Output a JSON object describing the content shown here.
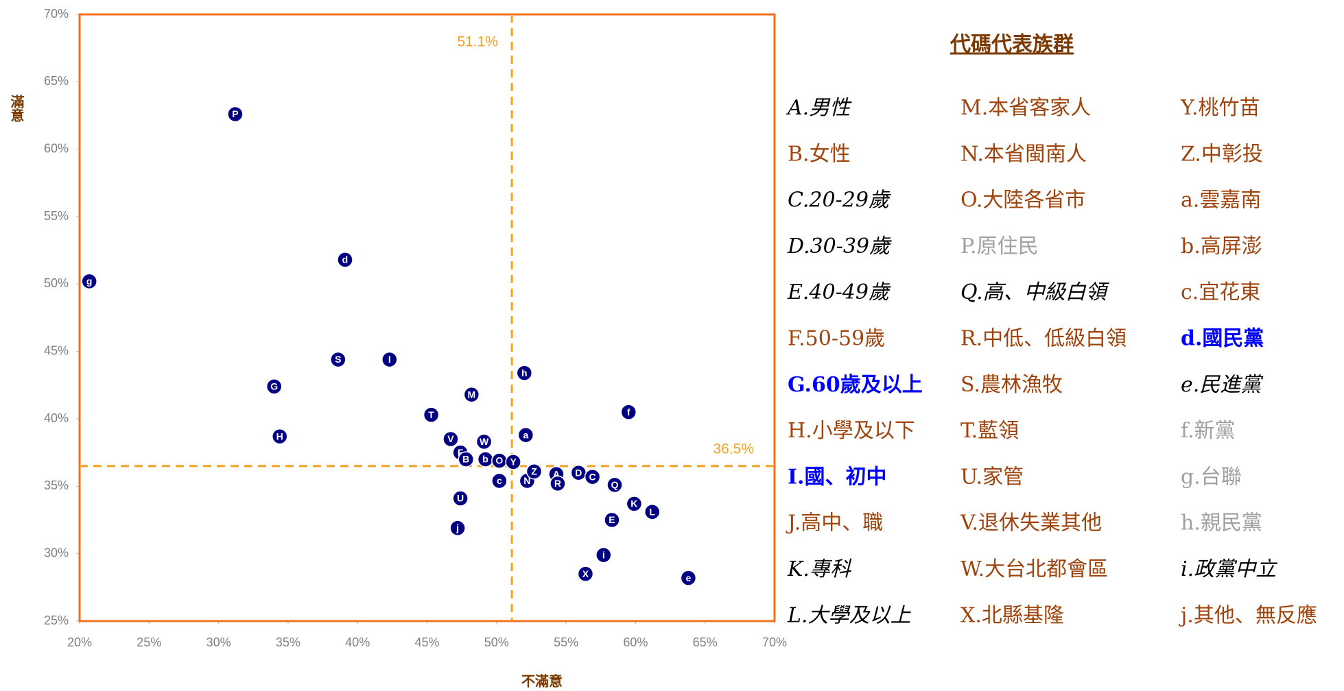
{
  "chart_data": {
    "type": "scatter",
    "x_label": "不滿意",
    "y_label": "滿意",
    "xlim": [
      20,
      70
    ],
    "ylim": [
      25,
      70
    ],
    "xticks": [
      {
        "value": 20,
        "label": "20%"
      },
      {
        "value": 25,
        "label": "25%"
      },
      {
        "value": 30,
        "label": "30%"
      },
      {
        "value": 35,
        "label": "35%"
      },
      {
        "value": 40,
        "label": "40%"
      },
      {
        "value": 45,
        "label": "45%"
      },
      {
        "value": 50,
        "label": "50%"
      },
      {
        "value": 55,
        "label": "55%"
      },
      {
        "value": 60,
        "label": "60%"
      },
      {
        "value": 65,
        "label": "65%"
      },
      {
        "value": 70,
        "label": "70%"
      }
    ],
    "yticks": [
      {
        "value": 25,
        "label": "25%"
      },
      {
        "value": 30,
        "label": "30%"
      },
      {
        "value": 35,
        "label": "35%"
      },
      {
        "value": 40,
        "label": "40%"
      },
      {
        "value": 45,
        "label": "45%"
      },
      {
        "value": 50,
        "label": "50%"
      },
      {
        "value": 55,
        "label": "55%"
      },
      {
        "value": 60,
        "label": "60%"
      },
      {
        "value": 65,
        "label": "65%"
      },
      {
        "value": 70,
        "label": "70%"
      }
    ],
    "color": "#000080",
    "ref_lines": [
      {
        "axis": "x",
        "value": 51.1,
        "label": "51.1%"
      },
      {
        "axis": "y",
        "value": 36.5,
        "label": "36.5%"
      }
    ],
    "points": [
      {
        "label": "P",
        "x": 31.2,
        "y": 62.6
      },
      {
        "label": "d",
        "x": 39.1,
        "y": 51.8
      },
      {
        "label": "g",
        "x": 20.7,
        "y": 50.2
      },
      {
        "label": "S",
        "x": 38.6,
        "y": 44.4
      },
      {
        "label": "I",
        "x": 42.3,
        "y": 44.4
      },
      {
        "label": "G",
        "x": 34.0,
        "y": 42.4
      },
      {
        "label": "H",
        "x": 34.4,
        "y": 38.7
      },
      {
        "label": "h",
        "x": 52.0,
        "y": 43.4
      },
      {
        "label": "M",
        "x": 48.2,
        "y": 41.8
      },
      {
        "label": "T",
        "x": 45.3,
        "y": 40.3
      },
      {
        "label": "f",
        "x": 59.5,
        "y": 40.5
      },
      {
        "label": "a",
        "x": 52.1,
        "y": 38.8
      },
      {
        "label": "V",
        "x": 46.7,
        "y": 38.5
      },
      {
        "label": "W",
        "x": 49.1,
        "y": 38.3
      },
      {
        "label": "F",
        "x": 47.4,
        "y": 37.5
      },
      {
        "label": "B",
        "x": 47.8,
        "y": 37.0
      },
      {
        "label": "b",
        "x": 49.2,
        "y": 37.0
      },
      {
        "label": "O",
        "x": 50.2,
        "y": 36.9
      },
      {
        "label": "Y",
        "x": 51.2,
        "y": 36.8
      },
      {
        "label": "c",
        "x": 50.2,
        "y": 35.4
      },
      {
        "label": "N",
        "x": 52.2,
        "y": 35.4
      },
      {
        "label": "Z",
        "x": 52.7,
        "y": 36.1
      },
      {
        "label": "A",
        "x": 54.3,
        "y": 35.9
      },
      {
        "label": "R",
        "x": 54.4,
        "y": 35.2
      },
      {
        "label": "D",
        "x": 55.9,
        "y": 36.0
      },
      {
        "label": "C",
        "x": 56.9,
        "y": 35.7
      },
      {
        "label": "Q",
        "x": 58.5,
        "y": 35.1
      },
      {
        "label": "K",
        "x": 59.9,
        "y": 33.7
      },
      {
        "label": "L",
        "x": 61.2,
        "y": 33.1
      },
      {
        "label": "E",
        "x": 58.3,
        "y": 32.5
      },
      {
        "label": "U",
        "x": 47.4,
        "y": 34.1
      },
      {
        "label": "j",
        "x": 47.2,
        "y": 31.9
      },
      {
        "label": "i",
        "x": 57.7,
        "y": 29.9
      },
      {
        "label": "X",
        "x": 56.4,
        "y": 28.5
      },
      {
        "label": "e",
        "x": 63.8,
        "y": 28.2
      }
    ],
    "code_table": {
      "title": "代碼代表族群",
      "columns": [
        [
          {
            "text": "A.男性",
            "color": "#000000",
            "style": "italic"
          },
          {
            "text": "B.女性",
            "color": "#a0440e",
            "style": "normal"
          },
          {
            "text": "C.20-29歲",
            "color": "#000000",
            "style": "italic"
          },
          {
            "text": "D.30-39歲",
            "color": "#000000",
            "style": "italic"
          },
          {
            "text": "E.40-49歲",
            "color": "#000000",
            "style": "italic"
          },
          {
            "text": "F.50-59歲",
            "color": "#a0440e",
            "style": "normal"
          },
          {
            "text": "G.60歲及以上",
            "color": "#0000ff",
            "style": "bold"
          },
          {
            "text": "H.小學及以下",
            "color": "#a0440e",
            "style": "normal"
          },
          {
            "text": "I.國、初中",
            "color": "#0000ff",
            "style": "bold"
          },
          {
            "text": "J.高中、職",
            "color": "#a0440e",
            "style": "normal"
          },
          {
            "text": "K.專科",
            "color": "#000000",
            "style": "italic"
          },
          {
            "text": "L.大學及以上",
            "color": "#000000",
            "style": "italic"
          }
        ],
        [
          {
            "text": "M.本省客家人",
            "color": "#a0440e",
            "style": "normal"
          },
          {
            "text": "N.本省閩南人",
            "color": "#a0440e",
            "style": "normal"
          },
          {
            "text": "O.大陸各省市",
            "color": "#a0440e",
            "style": "normal"
          },
          {
            "text": "P.原住民",
            "color": "#a0a0a0",
            "style": "normal"
          },
          {
            "text": "Q.高、中級白領",
            "color": "#000000",
            "style": "italic"
          },
          {
            "text": "R.中低、低級白領",
            "color": "#a0440e",
            "style": "normal"
          },
          {
            "text": "S.農林漁牧",
            "color": "#a0440e",
            "style": "normal"
          },
          {
            "text": "T.藍領",
            "color": "#a0440e",
            "style": "normal"
          },
          {
            "text": "U.家管",
            "color": "#a0440e",
            "style": "normal"
          },
          {
            "text": "V.退休失業其他",
            "color": "#a0440e",
            "style": "normal"
          },
          {
            "text": "W.大台北都會區",
            "color": "#a0440e",
            "style": "normal"
          },
          {
            "text": "X.北縣基隆",
            "color": "#a0440e",
            "style": "normal"
          }
        ],
        [
          {
            "text": "Y.桃竹苗",
            "color": "#a0440e",
            "style": "normal"
          },
          {
            "text": "Z.中彰投",
            "color": "#a0440e",
            "style": "normal"
          },
          {
            "text": "a.雲嘉南",
            "color": "#a0440e",
            "style": "normal"
          },
          {
            "text": "b.高屏澎",
            "color": "#a0440e",
            "style": "normal"
          },
          {
            "text": "c.宜花東",
            "color": "#a0440e",
            "style": "normal"
          },
          {
            "text": "d.國民黨",
            "color": "#0000ff",
            "style": "bold"
          },
          {
            "text": "e.民進黨",
            "color": "#000000",
            "style": "italic"
          },
          {
            "text": "f.新黨",
            "color": "#a0a0a0",
            "style": "normal"
          },
          {
            "text": "g.台聯",
            "color": "#a0a0a0",
            "style": "normal"
          },
          {
            "text": "h.親民黨",
            "color": "#a0a0a0",
            "style": "normal"
          },
          {
            "text": "i.政黨中立",
            "color": "#000000",
            "style": "italic"
          },
          {
            "text": "j.其他、無反應",
            "color": "#a0440e",
            "style": "normal"
          }
        ]
      ]
    }
  }
}
